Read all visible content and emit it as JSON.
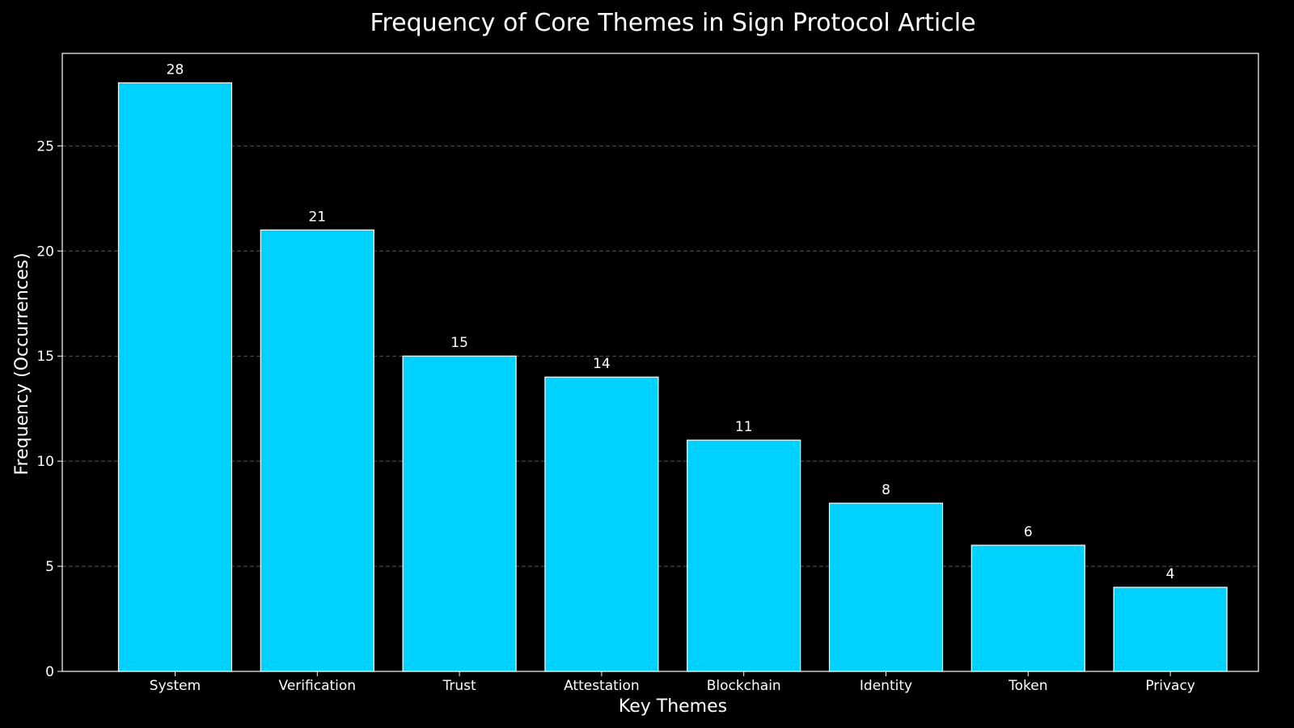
{
  "chart_data": {
    "type": "bar",
    "title": "Frequency of Core Themes in Sign Protocol Article",
    "xlabel": "Key Themes",
    "ylabel": "Frequency (Occurrences)",
    "categories": [
      "System",
      "Verification",
      "Trust",
      "Attestation",
      "Blockchain",
      "Identity",
      "Token",
      "Privacy"
    ],
    "values": [
      28,
      21,
      15,
      14,
      11,
      8,
      6,
      4
    ],
    "data_labels": [
      "28",
      "21",
      "15",
      "14",
      "11",
      "8",
      "6",
      "4"
    ],
    "yticks": [
      0,
      5,
      10,
      15,
      20,
      25
    ],
    "ytick_labels": [
      "0",
      "5",
      "10",
      "15",
      "20",
      "25"
    ],
    "ylim": [
      0,
      29.4
    ],
    "grid": "horizontal dashed",
    "bar_color": "#00d1ff",
    "bar_edge_color": "#ffffff",
    "background_color": "#000000",
    "grid_color": "#555555",
    "text_color": "#ffffff"
  }
}
